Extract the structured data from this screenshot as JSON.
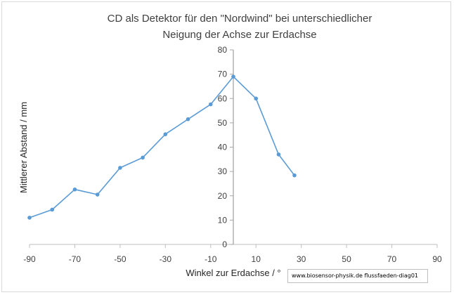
{
  "chart_data": {
    "type": "line",
    "title_line1": "CD als Detektor für den \"Nordwind\"  bei unterschiedlicher",
    "title_line2": "Neigung der Achse zur Erdachse",
    "xlabel": "Winkel zur Erdachse / °",
    "ylabel": "Mittlerer Abstand / mm",
    "xlim": [
      -90,
      90
    ],
    "ylim": [
      0,
      80
    ],
    "x_ticks": [
      -90,
      -70,
      -50,
      -30,
      -10,
      10,
      30,
      50,
      70,
      90
    ],
    "y_ticks": [
      0,
      10,
      20,
      30,
      40,
      50,
      60,
      70,
      80
    ],
    "y_axis_at_x": 0,
    "grid": false,
    "legend": "none",
    "series": [
      {
        "color": "#5b9bd5",
        "x": [
          -90,
          -80,
          -70,
          -60,
          -50,
          -40,
          -30,
          -20,
          -10,
          0,
          10,
          20,
          27
        ],
        "y": [
          11,
          14.3,
          22.6,
          20.5,
          31.5,
          35.7,
          45.3,
          51.5,
          57.6,
          69,
          60,
          37,
          28.4
        ]
      }
    ]
  },
  "watermark": "www.biosensor-physik.de  flussfaeden-diag01"
}
